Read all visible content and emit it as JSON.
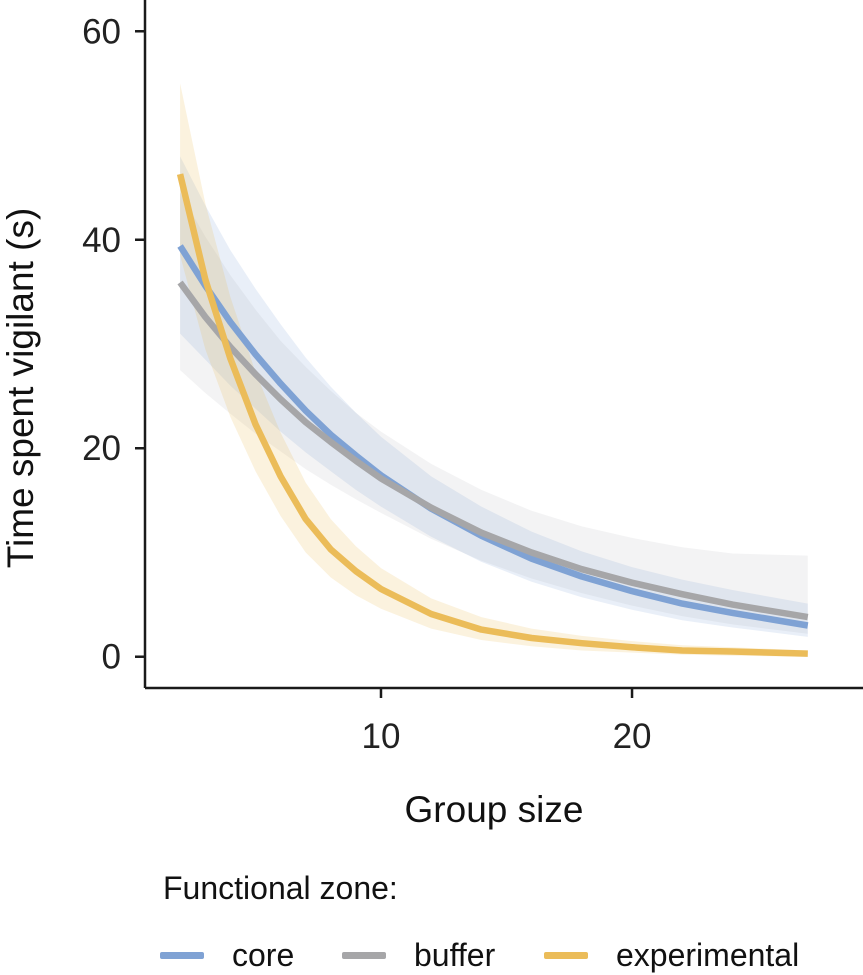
{
  "chart_data": {
    "type": "line",
    "xlabel": "Group size",
    "ylabel": "Time spent vigilant (s)",
    "xlim": [
      0.6,
      29.2
    ],
    "ylim": [
      -3,
      63
    ],
    "xticks": [
      10,
      20
    ],
    "yticks": [
      0,
      20,
      40,
      60
    ],
    "x": [
      2,
      3,
      4,
      5,
      6,
      7,
      8,
      9,
      10,
      12,
      14,
      16,
      18,
      20,
      22,
      24,
      27
    ],
    "grid": false,
    "legend_title": "Functional zone:",
    "legend_position": "bottom",
    "series": [
      {
        "name": "core",
        "color": "#7fa2d4",
        "values": [
          39.4,
          35.6,
          32.1,
          29.0,
          26.2,
          23.6,
          21.3,
          19.3,
          17.4,
          14.2,
          11.6,
          9.4,
          7.7,
          6.3,
          5.1,
          4.2,
          3.0
        ],
        "lower": [
          31.0,
          28.5,
          26.0,
          23.8,
          21.6,
          19.6,
          17.8,
          16.0,
          14.4,
          11.5,
          9.1,
          7.2,
          5.7,
          4.5,
          3.5,
          2.8,
          1.9
        ],
        "upper": [
          48.0,
          43.3,
          39.0,
          35.3,
          31.9,
          28.7,
          25.9,
          23.4,
          21.1,
          17.3,
          14.4,
          12.0,
          10.1,
          8.6,
          7.4,
          6.4,
          5.1
        ]
      },
      {
        "name": "buffer",
        "color": "#a6a6a8",
        "values": [
          35.9,
          32.6,
          29.7,
          27.1,
          24.7,
          22.5,
          20.6,
          18.8,
          17.1,
          14.3,
          11.9,
          10.0,
          8.4,
          7.1,
          6.0,
          5.0,
          3.8
        ],
        "lower": [
          27.5,
          25.3,
          23.3,
          21.4,
          19.7,
          18.0,
          16.5,
          15.1,
          13.8,
          11.3,
          9.2,
          7.5,
          6.1,
          4.9,
          3.9,
          3.1,
          2.2
        ],
        "upper": [
          44.5,
          40.3,
          36.6,
          33.3,
          30.3,
          27.8,
          25.5,
          23.4,
          21.6,
          18.5,
          16.0,
          14.0,
          12.5,
          11.4,
          10.5,
          9.9,
          9.7
        ]
      },
      {
        "name": "experimental",
        "color": "#ebbc59",
        "values": [
          46.3,
          36.2,
          28.6,
          22.3,
          17.3,
          13.2,
          10.3,
          8.2,
          6.5,
          4.1,
          2.6,
          1.8,
          1.3,
          0.9,
          0.6,
          0.5,
          0.3
        ],
        "lower": [
          38.5,
          29.5,
          23.0,
          17.8,
          13.5,
          10.0,
          7.6,
          5.9,
          4.6,
          2.7,
          1.6,
          1.0,
          0.6,
          0.4,
          0.2,
          0.1,
          0.0
        ],
        "upper": [
          55.0,
          43.5,
          34.5,
          27.3,
          21.5,
          16.7,
          13.2,
          10.6,
          8.5,
          5.6,
          3.8,
          2.7,
          2.0,
          1.5,
          1.1,
          0.9,
          0.6
        ]
      }
    ]
  }
}
